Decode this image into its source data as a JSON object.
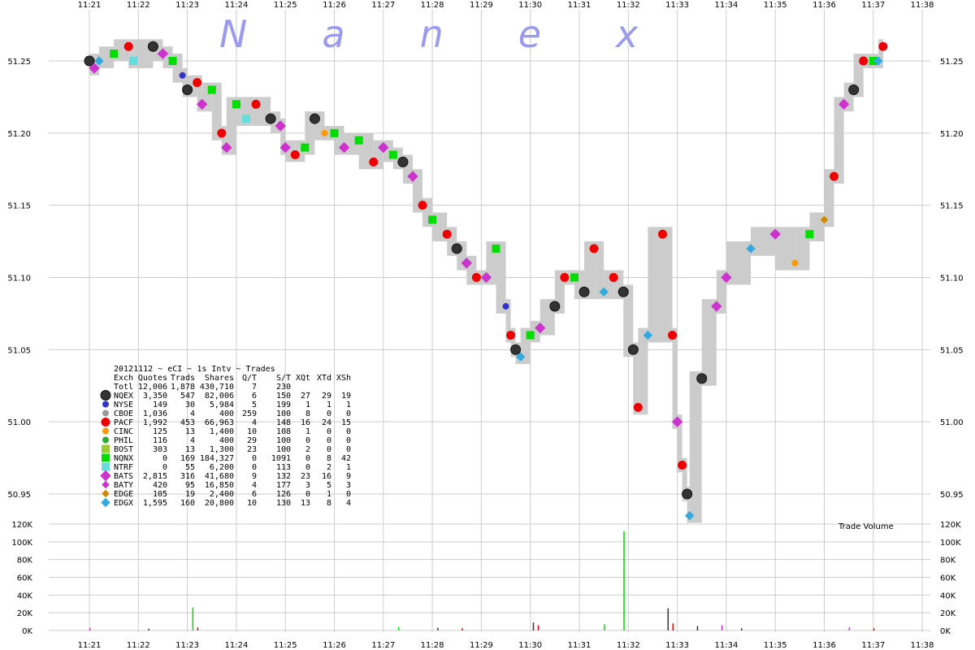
{
  "chart_data": {
    "type": "scatter",
    "brand": "Nanex",
    "subtitle": "20121112 ~ eCI ~ 1s Intv ~ Trades",
    "volume_label": "Trade Volume",
    "x_ticks": [
      "11:21",
      "11:22",
      "11:23",
      "11:24",
      "11:25",
      "11:26",
      "11:27",
      "11:28",
      "11:29",
      "11:30",
      "11:31",
      "11:32",
      "11:33",
      "11:34",
      "11:35",
      "11:36",
      "11:37",
      "11:38"
    ],
    "price_ticks": [
      "51.25",
      "51.20",
      "51.15",
      "51.10",
      "51.05",
      "51.00",
      "50.95"
    ],
    "volume_ticks": [
      "120K",
      "100K",
      "80K",
      "60K",
      "40K",
      "20K",
      "0K"
    ],
    "price_range": [
      50.93,
      51.27
    ],
    "volume_range": [
      0,
      120000
    ],
    "grid": true,
    "exchanges": {
      "columns": [
        "Exch",
        "Quotes",
        "Trads",
        "Shares",
        "Q/T",
        "S/T",
        "XQt",
        "XTd",
        "XSh"
      ],
      "rows": [
        {
          "exch": "Totl",
          "quotes": "12,006",
          "trads": "1,878",
          "shares": "430,710",
          "qt": "7",
          "st": "230",
          "xqt": "",
          "xtd": "",
          "xsh": "",
          "color": "",
          "marker": "none"
        },
        {
          "exch": "NQEX",
          "quotes": "3,350",
          "trads": "547",
          "shares": "82,006",
          "qt": "6",
          "st": "150",
          "xqt": "27",
          "xtd": "29",
          "xsh": "19",
          "color": "#333333",
          "marker": "circle-lg"
        },
        {
          "exch": "NYSE",
          "quotes": "149",
          "trads": "30",
          "shares": "5,984",
          "qt": "5",
          "st": "199",
          "xqt": "1",
          "xtd": "1",
          "xsh": "1",
          "color": "#3333cc",
          "marker": "circle-sm"
        },
        {
          "exch": "CBOE",
          "quotes": "1,036",
          "trads": "4",
          "shares": "400",
          "qt": "259",
          "st": "100",
          "xqt": "8",
          "xtd": "0",
          "xsh": "0",
          "color": "#999999",
          "marker": "circle-sm"
        },
        {
          "exch": "PACF",
          "quotes": "1,992",
          "trads": "453",
          "shares": "66,963",
          "qt": "4",
          "st": "148",
          "xqt": "16",
          "xtd": "24",
          "xsh": "15",
          "color": "#ee0000",
          "marker": "circle-md"
        },
        {
          "exch": "CINC",
          "quotes": "125",
          "trads": "13",
          "shares": "1,400",
          "qt": "10",
          "st": "108",
          "xqt": "1",
          "xtd": "0",
          "xsh": "0",
          "color": "#ff9900",
          "marker": "circle-sm"
        },
        {
          "exch": "PHIL",
          "quotes": "116",
          "trads": "4",
          "shares": "400",
          "qt": "29",
          "st": "100",
          "xqt": "0",
          "xtd": "0",
          "xsh": "0",
          "color": "#33aa33",
          "marker": "circle-sm"
        },
        {
          "exch": "BOST",
          "quotes": "303",
          "trads": "13",
          "shares": "1,300",
          "qt": "23",
          "st": "100",
          "xqt": "2",
          "xtd": "0",
          "xsh": "0",
          "color": "#99cc33",
          "marker": "square"
        },
        {
          "exch": "NQNX",
          "quotes": "0",
          "trads": "169",
          "shares": "184,327",
          "qt": "0",
          "st": "1091",
          "xqt": "0",
          "xtd": "8",
          "xsh": "42",
          "color": "#00dd00",
          "marker": "square"
        },
        {
          "exch": "NTRF",
          "quotes": "0",
          "trads": "55",
          "shares": "6,200",
          "qt": "0",
          "st": "113",
          "xqt": "0",
          "xtd": "2",
          "xsh": "1",
          "color": "#66dddd",
          "marker": "square"
        },
        {
          "exch": "BATS",
          "quotes": "2,815",
          "trads": "316",
          "shares": "41,680",
          "qt": "9",
          "st": "132",
          "xqt": "23",
          "xtd": "16",
          "xsh": "9",
          "color": "#cc33cc",
          "marker": "diamond-lg"
        },
        {
          "exch": "BATY",
          "quotes": "420",
          "trads": "95",
          "shares": "16,850",
          "qt": "4",
          "st": "177",
          "xqt": "3",
          "xtd": "5",
          "xsh": "3",
          "color": "#cc33cc",
          "marker": "diamond-sm"
        },
        {
          "exch": "EDGE",
          "quotes": "105",
          "trads": "19",
          "shares": "2,400",
          "qt": "6",
          "st": "126",
          "xqt": "0",
          "xtd": "1",
          "xsh": "0",
          "color": "#cc8800",
          "marker": "diamond-sm"
        },
        {
          "exch": "EDGX",
          "quotes": "1,595",
          "trads": "160",
          "shares": "20,800",
          "qt": "10",
          "st": "130",
          "xqt": "13",
          "xtd": "8",
          "xsh": "4",
          "color": "#33aadd",
          "marker": "diamond-md"
        }
      ]
    },
    "trade_points": [
      {
        "t": 0.0,
        "price": 51.25,
        "exch": "NQEX"
      },
      {
        "t": 0.1,
        "price": 51.245,
        "exch": "BATS"
      },
      {
        "t": 0.2,
        "price": 51.25,
        "exch": "EDGX"
      },
      {
        "t": 0.5,
        "price": 51.255,
        "exch": "NQNX"
      },
      {
        "t": 0.8,
        "price": 51.26,
        "exch": "PACF"
      },
      {
        "t": 0.9,
        "price": 51.25,
        "exch": "NTRF"
      },
      {
        "t": 1.3,
        "price": 51.26,
        "exch": "NQEX"
      },
      {
        "t": 1.5,
        "price": 51.255,
        "exch": "BATS"
      },
      {
        "t": 1.7,
        "price": 51.25,
        "exch": "NQNX"
      },
      {
        "t": 1.9,
        "price": 51.24,
        "exch": "NYSE"
      },
      {
        "t": 2.0,
        "price": 51.23,
        "exch": "NQEX"
      },
      {
        "t": 2.2,
        "price": 51.235,
        "exch": "PACF"
      },
      {
        "t": 2.3,
        "price": 51.22,
        "exch": "BATS"
      },
      {
        "t": 2.5,
        "price": 51.23,
        "exch": "NQNX"
      },
      {
        "t": 2.7,
        "price": 51.2,
        "exch": "PACF"
      },
      {
        "t": 2.8,
        "price": 51.19,
        "exch": "BATS"
      },
      {
        "t": 3.0,
        "price": 51.22,
        "exch": "NQNX"
      },
      {
        "t": 3.2,
        "price": 51.21,
        "exch": "NTRF"
      },
      {
        "t": 3.4,
        "price": 51.22,
        "exch": "PACF"
      },
      {
        "t": 3.7,
        "price": 51.21,
        "exch": "NQEX"
      },
      {
        "t": 3.9,
        "price": 51.205,
        "exch": "BATS"
      },
      {
        "t": 4.0,
        "price": 51.19,
        "exch": "BATS"
      },
      {
        "t": 4.2,
        "price": 51.185,
        "exch": "PACF"
      },
      {
        "t": 4.4,
        "price": 51.19,
        "exch": "NQNX"
      },
      {
        "t": 4.6,
        "price": 51.21,
        "exch": "NQEX"
      },
      {
        "t": 4.8,
        "price": 51.2,
        "exch": "CINC"
      },
      {
        "t": 5.0,
        "price": 51.2,
        "exch": "NQNX"
      },
      {
        "t": 5.2,
        "price": 51.19,
        "exch": "BATS"
      },
      {
        "t": 5.5,
        "price": 51.195,
        "exch": "NQNX"
      },
      {
        "t": 5.8,
        "price": 51.18,
        "exch": "PACF"
      },
      {
        "t": 6.0,
        "price": 51.19,
        "exch": "BATS"
      },
      {
        "t": 6.2,
        "price": 51.185,
        "exch": "NQNX"
      },
      {
        "t": 6.4,
        "price": 51.18,
        "exch": "NQEX"
      },
      {
        "t": 6.6,
        "price": 51.17,
        "exch": "BATS"
      },
      {
        "t": 6.8,
        "price": 51.15,
        "exch": "PACF"
      },
      {
        "t": 7.0,
        "price": 51.14,
        "exch": "NQNX"
      },
      {
        "t": 7.3,
        "price": 51.13,
        "exch": "PACF"
      },
      {
        "t": 7.5,
        "price": 51.12,
        "exch": "NQEX"
      },
      {
        "t": 7.7,
        "price": 51.11,
        "exch": "BATS"
      },
      {
        "t": 7.9,
        "price": 51.1,
        "exch": "PACF"
      },
      {
        "t": 8.1,
        "price": 51.1,
        "exch": "BATS"
      },
      {
        "t": 8.3,
        "price": 51.12,
        "exch": "NQNX"
      },
      {
        "t": 8.5,
        "price": 51.08,
        "exch": "NYSE"
      },
      {
        "t": 8.6,
        "price": 51.06,
        "exch": "PACF"
      },
      {
        "t": 8.7,
        "price": 51.05,
        "exch": "NQEX"
      },
      {
        "t": 8.8,
        "price": 51.045,
        "exch": "EDGX"
      },
      {
        "t": 9.0,
        "price": 51.06,
        "exch": "NQNX"
      },
      {
        "t": 9.2,
        "price": 51.065,
        "exch": "BATS"
      },
      {
        "t": 9.5,
        "price": 51.08,
        "exch": "NQEX"
      },
      {
        "t": 9.7,
        "price": 51.1,
        "exch": "PACF"
      },
      {
        "t": 9.9,
        "price": 51.1,
        "exch": "NQNX"
      },
      {
        "t": 10.1,
        "price": 51.09,
        "exch": "NQEX"
      },
      {
        "t": 10.3,
        "price": 51.12,
        "exch": "PACF"
      },
      {
        "t": 10.5,
        "price": 51.09,
        "exch": "EDGX"
      },
      {
        "t": 10.7,
        "price": 51.1,
        "exch": "PACF"
      },
      {
        "t": 10.9,
        "price": 51.09,
        "exch": "NQEX"
      },
      {
        "t": 11.1,
        "price": 51.05,
        "exch": "NQEX"
      },
      {
        "t": 11.2,
        "price": 51.01,
        "exch": "PACF"
      },
      {
        "t": 11.4,
        "price": 51.06,
        "exch": "EDGX"
      },
      {
        "t": 11.7,
        "price": 51.13,
        "exch": "PACF"
      },
      {
        "t": 11.9,
        "price": 51.06,
        "exch": "PACF"
      },
      {
        "t": 12.0,
        "price": 51.0,
        "exch": "BATS"
      },
      {
        "t": 12.1,
        "price": 50.97,
        "exch": "PACF"
      },
      {
        "t": 12.2,
        "price": 50.95,
        "exch": "NQEX"
      },
      {
        "t": 12.25,
        "price": 50.935,
        "exch": "EDGX"
      },
      {
        "t": 12.5,
        "price": 51.03,
        "exch": "NQEX"
      },
      {
        "t": 12.8,
        "price": 51.08,
        "exch": "BATS"
      },
      {
        "t": 13.0,
        "price": 51.1,
        "exch": "BATS"
      },
      {
        "t": 13.5,
        "price": 51.12,
        "exch": "EDGX"
      },
      {
        "t": 14.0,
        "price": 51.13,
        "exch": "BATS"
      },
      {
        "t": 14.4,
        "price": 51.11,
        "exch": "CINC"
      },
      {
        "t": 14.7,
        "price": 51.13,
        "exch": "NQNX"
      },
      {
        "t": 15.0,
        "price": 51.14,
        "exch": "EDGE"
      },
      {
        "t": 15.2,
        "price": 51.17,
        "exch": "PACF"
      },
      {
        "t": 15.4,
        "price": 51.22,
        "exch": "BATS"
      },
      {
        "t": 15.6,
        "price": 51.23,
        "exch": "NQEX"
      },
      {
        "t": 15.8,
        "price": 51.25,
        "exch": "PACF"
      },
      {
        "t": 16.0,
        "price": 51.25,
        "exch": "NQNX"
      },
      {
        "t": 16.1,
        "price": 51.25,
        "exch": "EDGX"
      },
      {
        "t": 16.2,
        "price": 51.26,
        "exch": "PACF"
      }
    ],
    "volume_bars": [
      {
        "t": 0.0,
        "volume": 3000,
        "exch": "BATS"
      },
      {
        "t": 1.2,
        "volume": 2000,
        "exch": "NQEX"
      },
      {
        "t": 2.1,
        "volume": 26000,
        "exch": "NQNX"
      },
      {
        "t": 2.2,
        "volume": 3500,
        "exch": "PACF"
      },
      {
        "t": 6.3,
        "volume": 4000,
        "exch": "NQNX"
      },
      {
        "t": 7.1,
        "volume": 3000,
        "exch": "NQEX"
      },
      {
        "t": 7.6,
        "volume": 2500,
        "exch": "PACF"
      },
      {
        "t": 9.05,
        "volume": 9000,
        "exch": "NQEX"
      },
      {
        "t": 9.15,
        "volume": 6000,
        "exch": "PACF"
      },
      {
        "t": 10.5,
        "volume": 7000,
        "exch": "NQNX"
      },
      {
        "t": 10.9,
        "volume": 112000,
        "exch": "NQNX"
      },
      {
        "t": 11.8,
        "volume": 25000,
        "exch": "NQEX"
      },
      {
        "t": 11.9,
        "volume": 8000,
        "exch": "PACF"
      },
      {
        "t": 12.4,
        "volume": 5000,
        "exch": "NQEX"
      },
      {
        "t": 12.9,
        "volume": 6000,
        "exch": "BATS"
      },
      {
        "t": 13.3,
        "volume": 2500,
        "exch": "NQEX"
      },
      {
        "t": 15.5,
        "volume": 3500,
        "exch": "BATS"
      },
      {
        "t": 16.0,
        "volume": 2500,
        "exch": "PACF"
      }
    ]
  }
}
